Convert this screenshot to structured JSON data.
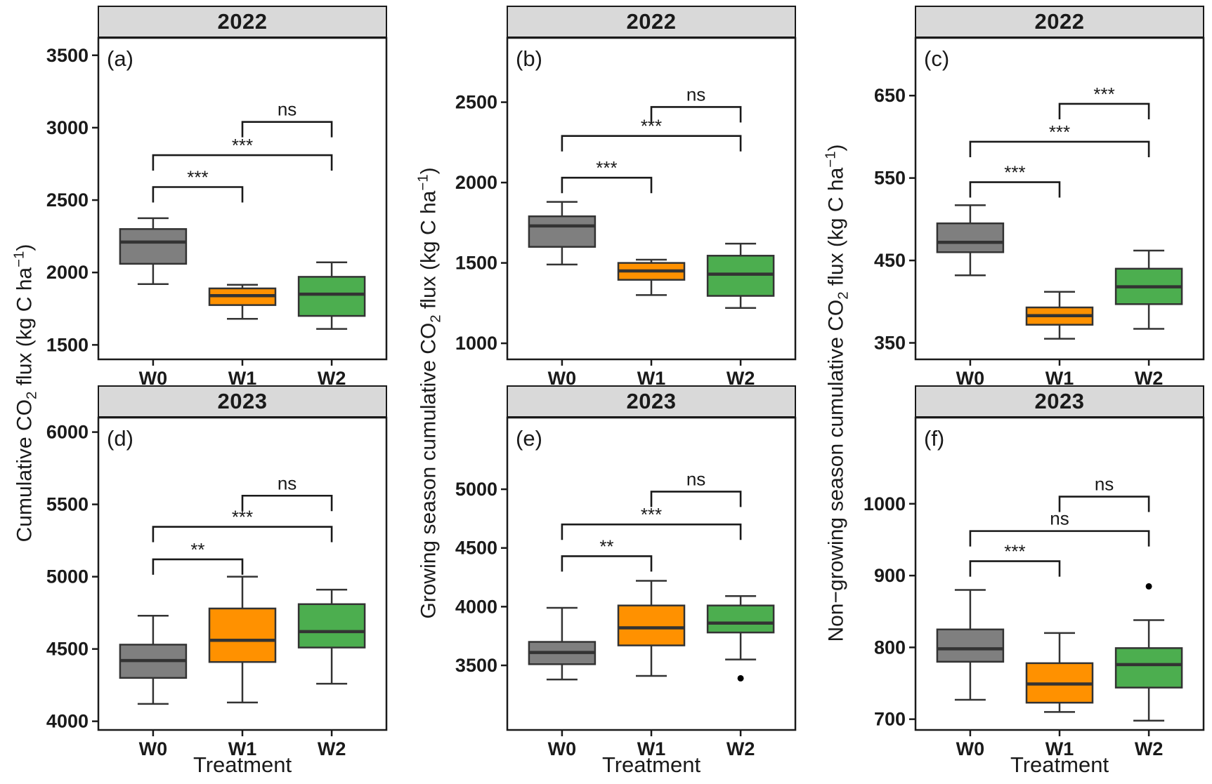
{
  "figure": {
    "x_axis_title": "Treatment",
    "categories": [
      "W0",
      "W1",
      "W2"
    ],
    "colors": {
      "fills": {
        "W0": "#7F7F7F",
        "W1": "#FF9100",
        "W2": "#4CAE4F"
      },
      "box_stroke": "#333333",
      "strip_bg": "#D9D9D9",
      "axis_color": "#1a1a1a"
    },
    "y_axis_titles": [
      {
        "segments": [
          {
            "t": "Cumulative CO"
          },
          {
            "t": "2",
            "sub": true
          },
          {
            "t": " flux (kg C ha"
          },
          {
            "t": "−1",
            "sup": true
          },
          {
            "t": ")"
          }
        ]
      },
      {
        "segments": [
          {
            "t": "Growing season cumulative CO"
          },
          {
            "t": "2",
            "sub": true
          },
          {
            "t": " flux (kg C ha"
          },
          {
            "t": "−1",
            "sup": true
          },
          {
            "t": ")"
          }
        ]
      },
      {
        "segments": [
          {
            "t": "Non−growing season cumulative CO"
          },
          {
            "t": "2",
            "sub": true
          },
          {
            "t": " flux (kg C ha"
          },
          {
            "t": "−1",
            "sup": true
          },
          {
            "t": ")"
          }
        ]
      }
    ]
  },
  "chart_data": [
    {
      "type": "box",
      "id": "a",
      "letter": "(a)",
      "strip": "2022",
      "row": 0,
      "col": 0,
      "ylim": [
        1400,
        3620
      ],
      "yticks": [
        1500,
        2000,
        2500,
        3000,
        3500
      ],
      "boxes": [
        {
          "treatment": "W0",
          "whisker_low": 1920,
          "q1": 2060,
          "median": 2210,
          "q3": 2300,
          "whisker_high": 2375,
          "outliers": []
        },
        {
          "treatment": "W1",
          "whisker_low": 1680,
          "q1": 1775,
          "median": 1840,
          "q3": 1890,
          "whisker_high": 1915,
          "outliers": []
        },
        {
          "treatment": "W2",
          "whisker_low": 1610,
          "q1": 1700,
          "median": 1850,
          "q3": 1970,
          "whisker_high": 2070,
          "outliers": []
        }
      ],
      "significance": [
        {
          "from": "W0",
          "to": "W1",
          "label": "***",
          "bar_y": 2590
        },
        {
          "from": "W0",
          "to": "W2",
          "label": "***",
          "bar_y": 2810
        },
        {
          "from": "W1",
          "to": "W2",
          "label": "ns",
          "bar_y": 3040
        }
      ]
    },
    {
      "type": "box",
      "id": "b",
      "letter": "(b)",
      "strip": "2022",
      "row": 0,
      "col": 1,
      "ylim": [
        900,
        2900
      ],
      "yticks": [
        1000,
        1500,
        2000,
        2500
      ],
      "boxes": [
        {
          "treatment": "W0",
          "whisker_low": 1490,
          "q1": 1600,
          "median": 1730,
          "q3": 1790,
          "whisker_high": 1880,
          "outliers": []
        },
        {
          "treatment": "W1",
          "whisker_low": 1300,
          "q1": 1395,
          "median": 1450,
          "q3": 1500,
          "whisker_high": 1520,
          "outliers": []
        },
        {
          "treatment": "W2",
          "whisker_low": 1220,
          "q1": 1295,
          "median": 1430,
          "q3": 1545,
          "whisker_high": 1620,
          "outliers": []
        }
      ],
      "significance": [
        {
          "from": "W0",
          "to": "W1",
          "label": "***",
          "bar_y": 2030
        },
        {
          "from": "W0",
          "to": "W2",
          "label": "***",
          "bar_y": 2290
        },
        {
          "from": "W1",
          "to": "W2",
          "label": "ns",
          "bar_y": 2470
        }
      ]
    },
    {
      "type": "box",
      "id": "c",
      "letter": "(c)",
      "strip": "2022",
      "row": 0,
      "col": 2,
      "ylim": [
        330,
        720
      ],
      "yticks": [
        350,
        450,
        550,
        650
      ],
      "boxes": [
        {
          "treatment": "W0",
          "whisker_low": 432,
          "q1": 460,
          "median": 472,
          "q3": 495,
          "whisker_high": 517,
          "outliers": []
        },
        {
          "treatment": "W1",
          "whisker_low": 355,
          "q1": 372,
          "median": 383,
          "q3": 393,
          "whisker_high": 412,
          "outliers": []
        },
        {
          "treatment": "W2",
          "whisker_low": 367,
          "q1": 397,
          "median": 418,
          "q3": 440,
          "whisker_high": 462,
          "outliers": []
        }
      ],
      "significance": [
        {
          "from": "W0",
          "to": "W1",
          "label": "***",
          "bar_y": 545
        },
        {
          "from": "W0",
          "to": "W2",
          "label": "***",
          "bar_y": 594
        },
        {
          "from": "W1",
          "to": "W2",
          "label": "***",
          "bar_y": 640
        }
      ]
    },
    {
      "type": "box",
      "id": "d",
      "letter": "(d)",
      "strip": "2023",
      "row": 1,
      "col": 0,
      "ylim": [
        3940,
        6100
      ],
      "yticks": [
        4000,
        4500,
        5000,
        5500,
        6000
      ],
      "boxes": [
        {
          "treatment": "W0",
          "whisker_low": 4120,
          "q1": 4300,
          "median": 4420,
          "q3": 4530,
          "whisker_high": 4730,
          "outliers": []
        },
        {
          "treatment": "W1",
          "whisker_low": 4130,
          "q1": 4410,
          "median": 4560,
          "q3": 4780,
          "whisker_high": 5000,
          "outliers": []
        },
        {
          "treatment": "W2",
          "whisker_low": 4260,
          "q1": 4510,
          "median": 4620,
          "q3": 4810,
          "whisker_high": 4910,
          "outliers": []
        }
      ],
      "significance": [
        {
          "from": "W0",
          "to": "W1",
          "label": "**",
          "bar_y": 5120
        },
        {
          "from": "W0",
          "to": "W2",
          "label": "***",
          "bar_y": 5345
        },
        {
          "from": "W1",
          "to": "W2",
          "label": "ns",
          "bar_y": 5560
        }
      ]
    },
    {
      "type": "box",
      "id": "e",
      "letter": "(e)",
      "strip": "2023",
      "row": 1,
      "col": 1,
      "ylim": [
        2950,
        5610
      ],
      "yticks": [
        3500,
        4000,
        4500,
        5000
      ],
      "boxes": [
        {
          "treatment": "W0",
          "whisker_low": 3380,
          "q1": 3510,
          "median": 3610,
          "q3": 3700,
          "whisker_high": 3990,
          "outliers": []
        },
        {
          "treatment": "W1",
          "whisker_low": 3410,
          "q1": 3670,
          "median": 3820,
          "q3": 4010,
          "whisker_high": 4220,
          "outliers": []
        },
        {
          "treatment": "W2",
          "whisker_low": 3550,
          "q1": 3780,
          "median": 3860,
          "q3": 4010,
          "whisker_high": 4090,
          "outliers": [
            3390
          ]
        }
      ],
      "significance": [
        {
          "from": "W0",
          "to": "W1",
          "label": "**",
          "bar_y": 4430
        },
        {
          "from": "W0",
          "to": "W2",
          "label": "***",
          "bar_y": 4700
        },
        {
          "from": "W1",
          "to": "W2",
          "label": "ns",
          "bar_y": 4980
        }
      ]
    },
    {
      "type": "box",
      "id": "f",
      "letter": "(f)",
      "strip": "2023",
      "row": 1,
      "col": 2,
      "ylim": [
        685,
        1120
      ],
      "yticks": [
        700,
        800,
        900,
        1000
      ],
      "boxes": [
        {
          "treatment": "W0",
          "whisker_low": 727,
          "q1": 780,
          "median": 798,
          "q3": 825,
          "whisker_high": 880,
          "outliers": []
        },
        {
          "treatment": "W1",
          "whisker_low": 710,
          "q1": 723,
          "median": 749,
          "q3": 778,
          "whisker_high": 820,
          "outliers": []
        },
        {
          "treatment": "W2",
          "whisker_low": 698,
          "q1": 744,
          "median": 776,
          "q3": 799,
          "whisker_high": 838,
          "outliers": [
            885
          ]
        }
      ],
      "significance": [
        {
          "from": "W0",
          "to": "W1",
          "label": "***",
          "bar_y": 920
        },
        {
          "from": "W0",
          "to": "W2",
          "label": "ns",
          "bar_y": 962
        },
        {
          "from": "W1",
          "to": "W2",
          "label": "ns",
          "bar_y": 1010
        }
      ]
    }
  ]
}
